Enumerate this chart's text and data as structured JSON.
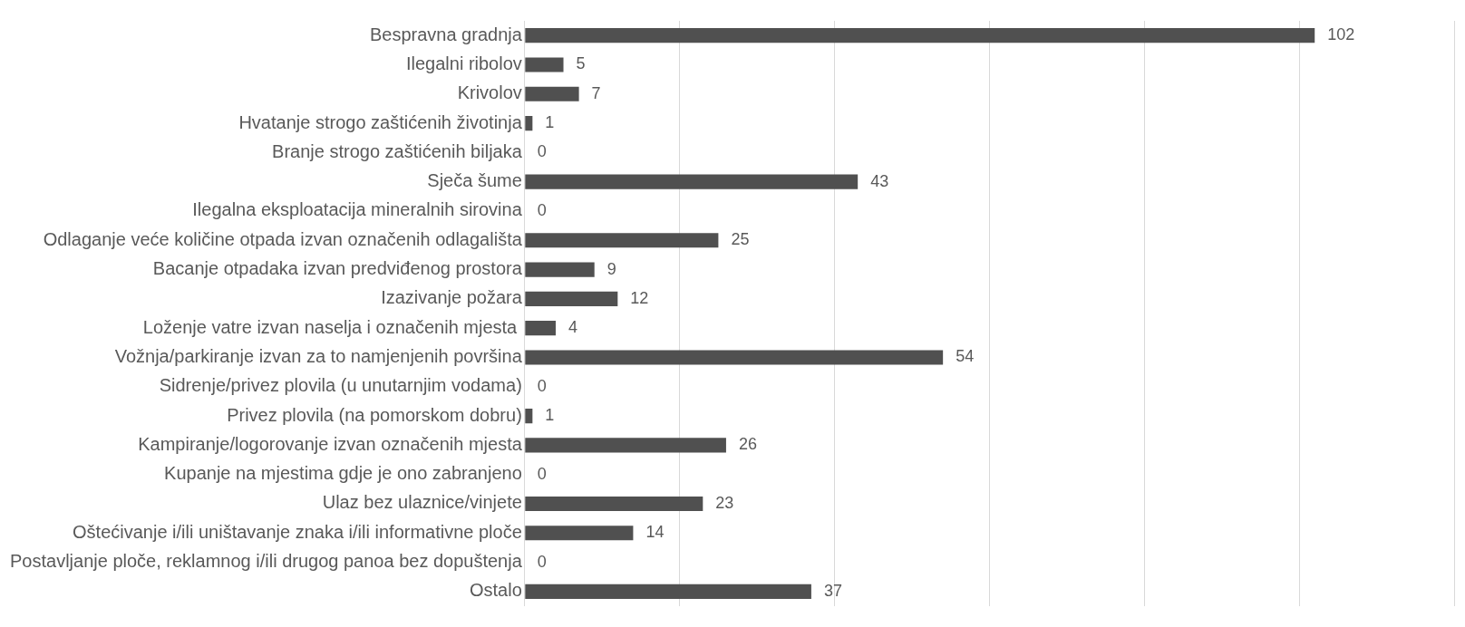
{
  "chart_data": {
    "type": "bar",
    "orientation": "horizontal",
    "categories": [
      "Bespravna gradnja",
      "Ilegalni ribolov",
      "Krivolov",
      "Hvatanje strogo zaštićenih životinja",
      "Branje strogo zaštićenih biljaka",
      "Sječa šume",
      "Ilegalna eksploatacija mineralnih sirovina",
      "Odlaganje veće količine otpada izvan označenih odlagališta",
      "Bacanje otpadaka izvan predviđenog prostora",
      "Izazivanje požara",
      "Loženje vatre izvan naselja i označenih mjesta ",
      "Vožnja/parkiranje izvan za to namjenjenih površina",
      "Sidrenje/privez plovila (u unutarnjim vodama)",
      "Privez plovila (na pomorskom dobru)",
      "Kampiranje/logorovanje izvan označenih mjesta",
      "Kupanje na mjestima gdje je ono zabranjeno",
      "Ulaz bez ulaznice/vinjete",
      "Oštećivanje i/ili uništavanje znaka i/ili informativne ploče",
      "Postavljanje ploče, reklamnog i/ili drugog panoa bez dopuštenja",
      "Ostalo"
    ],
    "values": [
      102,
      5,
      7,
      1,
      0,
      43,
      0,
      25,
      9,
      12,
      4,
      54,
      0,
      1,
      26,
      0,
      23,
      14,
      0,
      37
    ],
    "color": "#505050",
    "xlim": [
      0,
      120
    ],
    "xticks": [
      {
        "value": 0,
        "label": null
      },
      {
        "value": 20,
        "label": null
      },
      {
        "value": 40,
        "label": null
      },
      {
        "value": 60,
        "label": null
      },
      {
        "value": 80,
        "label": null
      },
      {
        "value": 100,
        "label": null
      },
      {
        "value": 120,
        "label": null
      }
    ],
    "tick_labels": "y",
    "grid": "x",
    "data_labels": true,
    "legend": false
  }
}
